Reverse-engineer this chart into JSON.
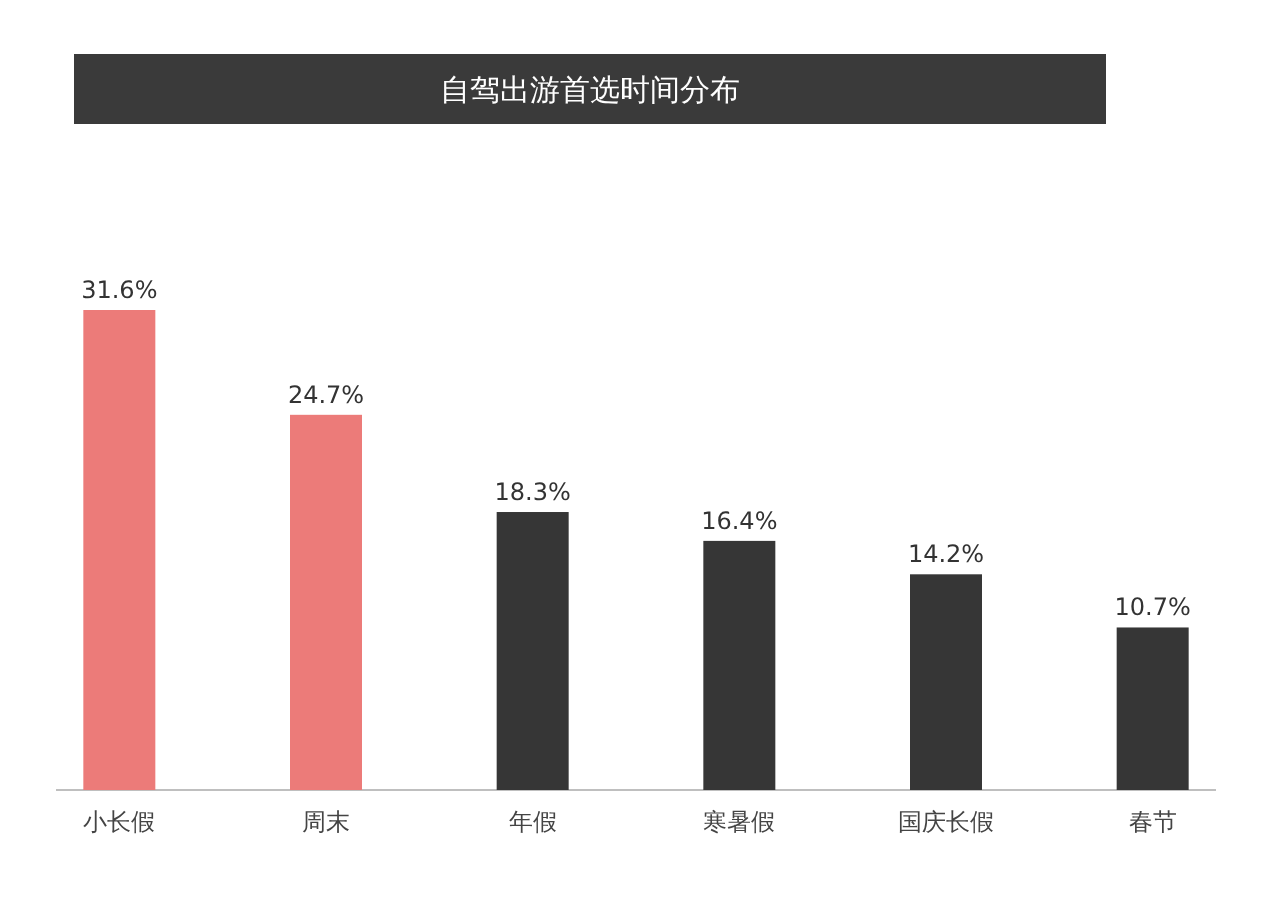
{
  "chart_data": {
    "type": "bar",
    "title": "自驾出游首选时间分布",
    "categories": [
      "小长假",
      "周末",
      "年假",
      "寒暑假",
      "国庆长假",
      "春节"
    ],
    "values": [
      31.6,
      24.7,
      18.3,
      16.4,
      14.2,
      10.7
    ],
    "colors": [
      "#ec7b79",
      "#ec7b79",
      "#363636",
      "#363636",
      "#363636",
      "#363636"
    ],
    "value_labels": [
      "31.6%",
      "24.7%",
      "18.3%",
      "16.4%",
      "14.2%",
      "10.7%"
    ]
  }
}
